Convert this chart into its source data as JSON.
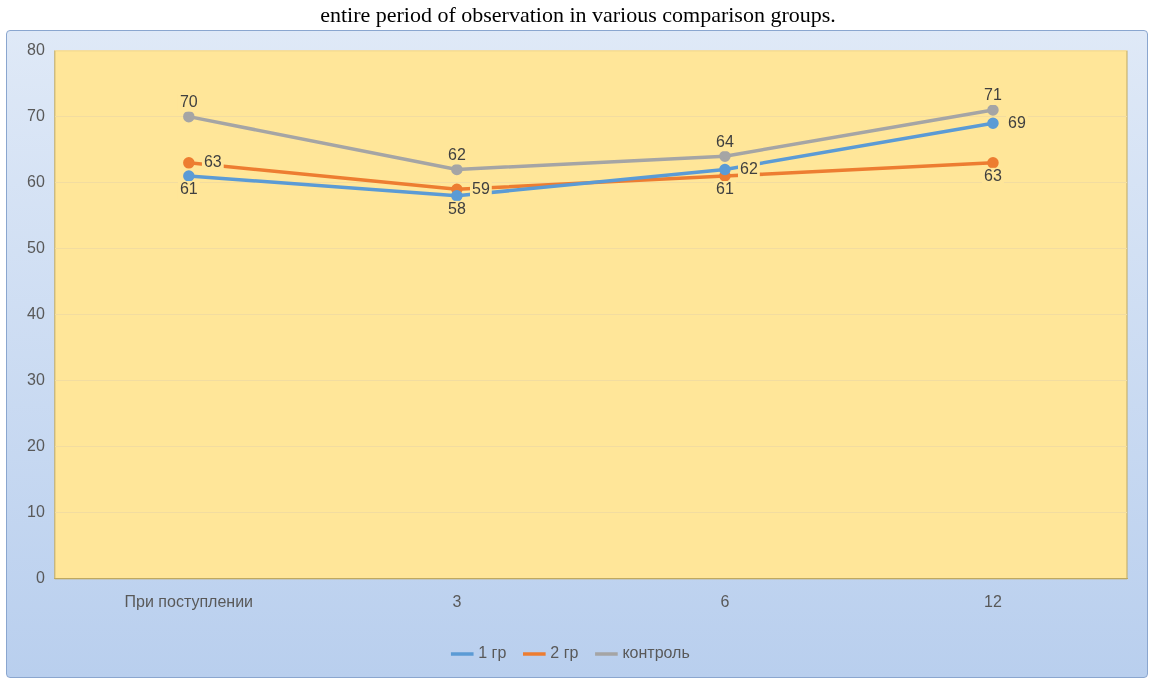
{
  "chart_data": {
    "type": "line",
    "title": "entire period of observation in various comparison groups.",
    "categories": [
      "При поступлении",
      "3",
      "6",
      "12"
    ],
    "series": [
      {
        "name": "1 гр",
        "color": "#5b9bd5",
        "values": [
          61,
          58,
          62,
          69
        ]
      },
      {
        "name": "2 гр",
        "color": "#ed7d31",
        "values": [
          63,
          59,
          61,
          63
        ]
      },
      {
        "name": "контроль",
        "color": "#a5a5a5",
        "values": [
          70,
          62,
          64,
          71
        ]
      }
    ],
    "ylim": [
      0,
      80
    ],
    "yticks": [
      0,
      10,
      20,
      30,
      40,
      50,
      60,
      70,
      80
    ],
    "grid": "y",
    "legend": "bottom",
    "marker": "circle",
    "line_style": "solid",
    "data_labels": true
  }
}
